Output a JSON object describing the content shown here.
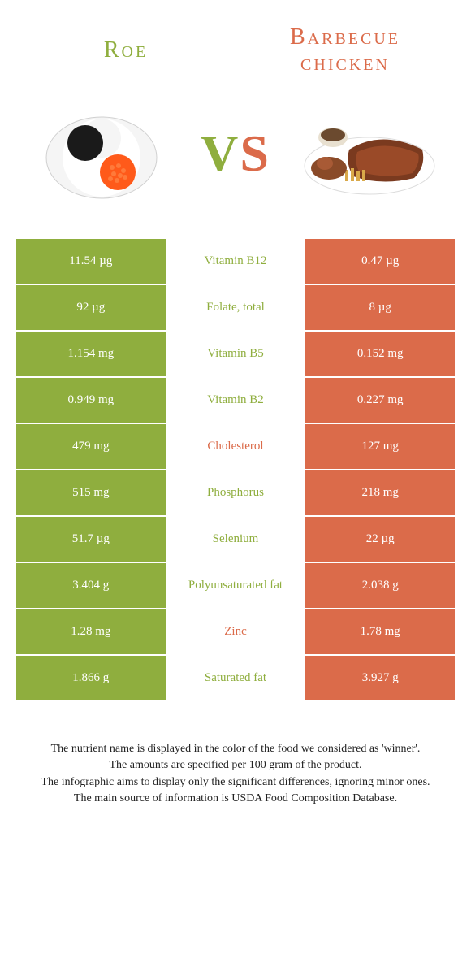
{
  "colors": {
    "left": "#8FAE3E",
    "right": "#DB6B4A",
    "text_on_color": "#ffffff",
    "background": "#ffffff"
  },
  "foods": {
    "left": {
      "name": "Roe"
    },
    "right": {
      "name": "Barbecue chicken"
    }
  },
  "vs": {
    "v": "V",
    "s": "S"
  },
  "rows": [
    {
      "nutrient": "Vitamin B12",
      "left": "11.54 µg",
      "right": "0.47 µg",
      "winner": "left"
    },
    {
      "nutrient": "Folate, total",
      "left": "92 µg",
      "right": "8 µg",
      "winner": "left"
    },
    {
      "nutrient": "Vitamin B5",
      "left": "1.154 mg",
      "right": "0.152 mg",
      "winner": "left"
    },
    {
      "nutrient": "Vitamin B2",
      "left": "0.949 mg",
      "right": "0.227 mg",
      "winner": "left"
    },
    {
      "nutrient": "Cholesterol",
      "left": "479 mg",
      "right": "127 mg",
      "winner": "right"
    },
    {
      "nutrient": "Phosphorus",
      "left": "515 mg",
      "right": "218 mg",
      "winner": "left"
    },
    {
      "nutrient": "Selenium",
      "left": "51.7 µg",
      "right": "22 µg",
      "winner": "left"
    },
    {
      "nutrient": "Polyunsaturated fat",
      "left": "3.404 g",
      "right": "2.038 g",
      "winner": "left"
    },
    {
      "nutrient": "Zinc",
      "left": "1.28 mg",
      "right": "1.78 mg",
      "winner": "right"
    },
    {
      "nutrient": "Saturated fat",
      "left": "1.866 g",
      "right": "3.927 g",
      "winner": "left"
    }
  ],
  "footnotes": [
    "The nutrient name is displayed in the color of the food we considered as 'winner'.",
    "The amounts are specified per 100 gram of the product.",
    "The infographic aims to display only the significant differences, ignoring minor ones.",
    "The main source of information is USDA Food Composition Database."
  ]
}
